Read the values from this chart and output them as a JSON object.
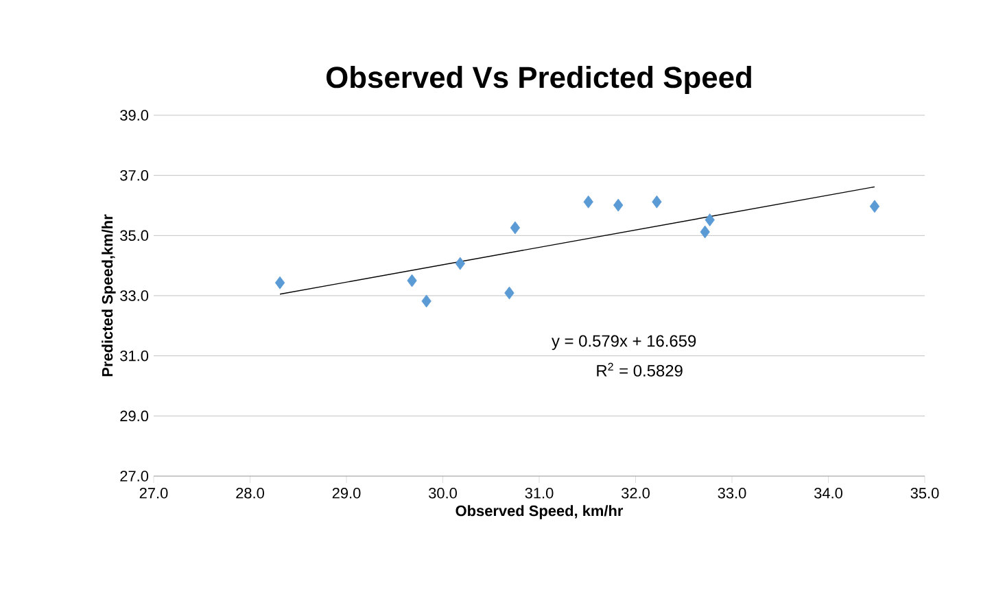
{
  "chart_data": {
    "type": "scatter",
    "title": "Observed Vs Predicted Speed",
    "xlabel": "Observed Speed, km/hr",
    "ylabel": "Predicted Speed,km/hr",
    "series": [
      {
        "color": "#5b9bd5",
        "marker": "diamond",
        "x": [
          28.31,
          29.68,
          29.83,
          30.18,
          30.69,
          30.75,
          31.51,
          31.82,
          32.22,
          32.72,
          32.77,
          34.48
        ],
        "values": [
          33.43,
          33.5,
          32.82,
          34.07,
          33.09,
          35.26,
          36.12,
          36.01,
          36.12,
          35.12,
          35.52,
          35.97
        ]
      },
      {
        "type": "line",
        "color": "#000000",
        "marker": "none",
        "x": [
          28.31,
          34.48
        ],
        "values": [
          33.05,
          36.62
        ]
      }
    ],
    "annotations": [
      "y = 0.579x + 16.659",
      "R$^{2}$ = 0.5829"
    ],
    "xlim": [
      27,
      35
    ],
    "ylim": [
      27,
      39
    ],
    "xticks": [
      {
        "value": 27,
        "label": "27.0"
      },
      {
        "value": 28,
        "label": "28.0"
      },
      {
        "value": 29,
        "label": "29.0"
      },
      {
        "value": 30,
        "label": "30.0"
      },
      {
        "value": 31,
        "label": "31.0"
      },
      {
        "value": 32,
        "label": "32.0"
      },
      {
        "value": 33,
        "label": "33.0"
      },
      {
        "value": 34,
        "label": "34.0"
      },
      {
        "value": 35,
        "label": "35.0"
      }
    ],
    "yticks": [
      {
        "value": 27,
        "label": "27.0"
      },
      {
        "value": 29,
        "label": "29.0"
      },
      {
        "value": 31,
        "label": "31.0"
      },
      {
        "value": 33,
        "label": "33.0"
      },
      {
        "value": 35,
        "label": "35.0"
      },
      {
        "value": 37,
        "label": "37.0"
      },
      {
        "value": 39,
        "label": "39.0"
      }
    ],
    "grid": "y"
  }
}
